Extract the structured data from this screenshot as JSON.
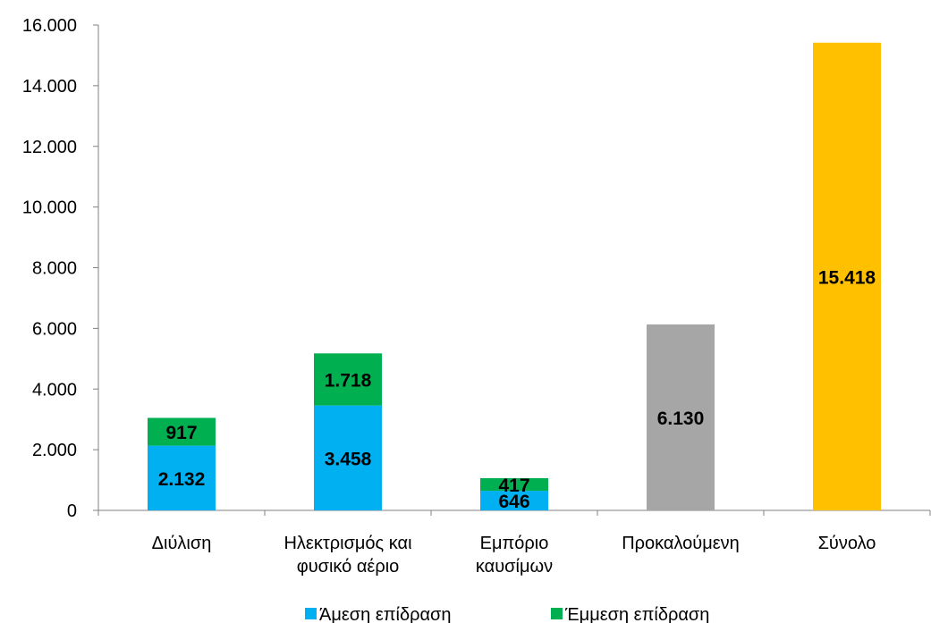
{
  "chart_data": {
    "type": "bar",
    "stacked": true,
    "title": "",
    "xlabel": "",
    "ylabel": "",
    "ylim": [
      0,
      16000
    ],
    "yticks": [
      0,
      2000,
      4000,
      6000,
      8000,
      10000,
      12000,
      14000,
      16000
    ],
    "ytick_labels": [
      "0",
      "2.000",
      "4.000",
      "6.000",
      "8.000",
      "10.000",
      "12.000",
      "14.000",
      "16.000"
    ],
    "grid": false,
    "legend_position": "bottom",
    "categories": [
      [
        "Διύλιση"
      ],
      [
        "Ηλεκτρισμός και",
        "φυσικό αέριο"
      ],
      [
        "Εμπόριο",
        "καυσίμων"
      ],
      [
        "Προκαλούμενη"
      ],
      [
        "Σύνολο"
      ]
    ],
    "series": [
      {
        "name": "Άμεση επίδραση",
        "color": "#00B0F0",
        "values": [
          2132,
          3458,
          646,
          null,
          null
        ],
        "labels": [
          "2.132",
          "3.458",
          "646",
          "",
          ""
        ]
      },
      {
        "name": "Έμμεση επίδραση",
        "color": "#00B050",
        "values": [
          917,
          1718,
          417,
          null,
          null
        ],
        "labels": [
          "917",
          "1.718",
          "417",
          "",
          ""
        ]
      },
      {
        "color": "#A6A6A6",
        "values": [
          null,
          null,
          null,
          6130,
          null
        ],
        "labels": [
          "",
          "",
          "",
          "6.130",
          ""
        ]
      },
      {
        "color": "#FFC000",
        "values": [
          null,
          null,
          null,
          null,
          15418
        ],
        "labels": [
          "",
          "",
          "",
          "",
          "15.418"
        ]
      }
    ],
    "legend": [
      {
        "name": "Άμεση επίδραση",
        "color": "#00B0F0"
      },
      {
        "name": "Έμμεση επίδραση",
        "color": "#00B050"
      }
    ]
  }
}
